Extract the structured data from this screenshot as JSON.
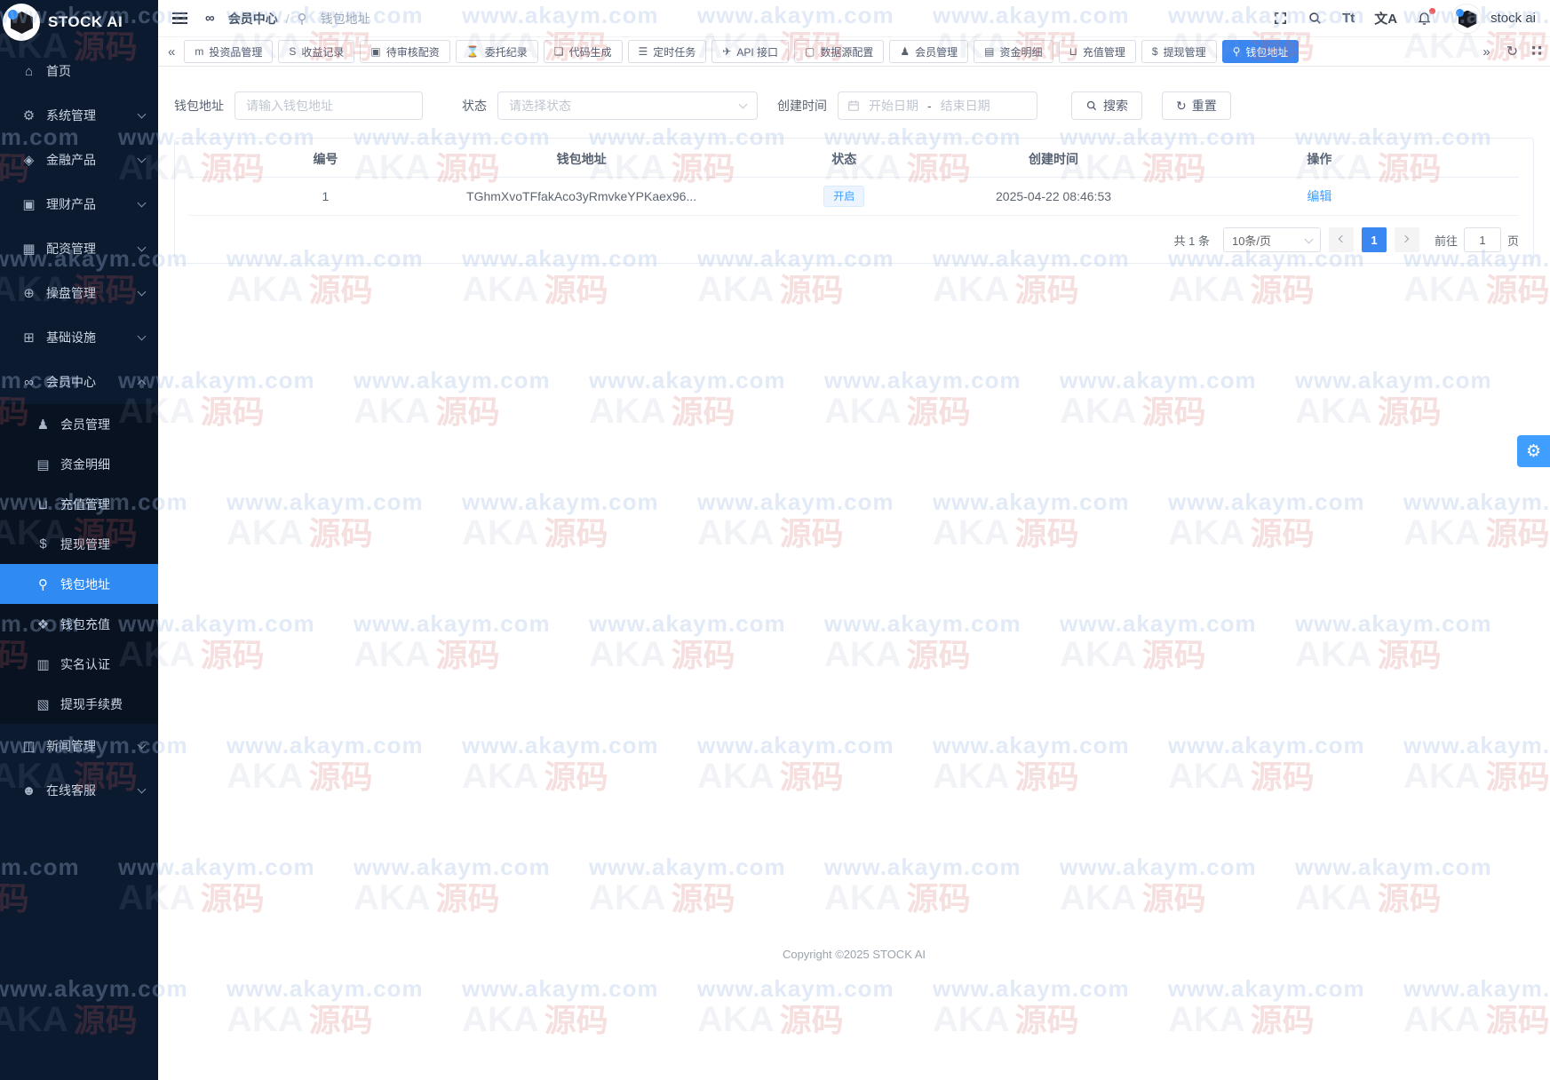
{
  "colors": {
    "accent": "#3a87f2",
    "link": "#409eff",
    "sidebar_bg": "#0c1a2f",
    "tag_blue_bg": "#ecf5ff"
  },
  "logo": {
    "title": "STOCK AI"
  },
  "header": {
    "breadcrumb": {
      "parent": "会员中心",
      "separator": "/",
      "current": "钱包地址"
    },
    "tools": {
      "font_icon_label": "Tt",
      "translate_icon_label": "文A"
    },
    "user": {
      "name": "stock ai"
    }
  },
  "sidebar": {
    "items": [
      {
        "label": "首页",
        "icon": "home-icon",
        "glyph": "⌂",
        "chevron": ""
      },
      {
        "label": "系统管理",
        "icon": "gear-icon",
        "glyph": "⚙",
        "chevron": "down"
      },
      {
        "label": "金融产品",
        "icon": "finance-product-icon",
        "glyph": "◈",
        "chevron": "down"
      },
      {
        "label": "理财产品",
        "icon": "wealth-product-icon",
        "glyph": "▣",
        "chevron": "down"
      },
      {
        "label": "配资管理",
        "icon": "funding-icon",
        "glyph": "▦",
        "chevron": "down"
      },
      {
        "label": "操盘管理",
        "icon": "trading-globe-icon",
        "glyph": "⊕",
        "chevron": "down"
      },
      {
        "label": "基础设施",
        "icon": "infrastructure-icon",
        "glyph": "⊞",
        "chevron": "down"
      }
    ],
    "member_center": {
      "label": "会员中心",
      "icon": "member-center-icon",
      "glyph": "∞",
      "children": [
        {
          "label": "会员管理",
          "icon": "user-icon",
          "glyph": "♟"
        },
        {
          "label": "资金明细",
          "icon": "book-icon",
          "glyph": "▤"
        },
        {
          "label": "充值管理",
          "icon": "cart-icon",
          "glyph": "⊔"
        },
        {
          "label": "提现管理",
          "icon": "dollar-icon",
          "glyph": "$"
        },
        {
          "label": "钱包地址",
          "icon": "person-pin-icon",
          "glyph": "⚲",
          "active": true
        },
        {
          "label": "钱包充值",
          "icon": "gem-icon",
          "glyph": "❖"
        },
        {
          "label": "实名认证",
          "icon": "id-card-icon",
          "glyph": "▥"
        },
        {
          "label": "提现手续费",
          "icon": "receipt-icon",
          "glyph": "▧"
        }
      ]
    },
    "bottom_items": [
      {
        "label": "新闻管理",
        "icon": "news-icon",
        "glyph": "◫",
        "chevron": "down"
      },
      {
        "label": "在线客服",
        "icon": "service-icon",
        "glyph": "☻",
        "chevron": "down"
      }
    ]
  },
  "tabs": {
    "items": [
      {
        "label": "投资品管理",
        "icon": "investment-icon",
        "glyph": "m"
      },
      {
        "label": "收益记录",
        "icon": "earnings-icon",
        "glyph": "S"
      },
      {
        "label": "待审核配资",
        "icon": "audit-icon",
        "glyph": "▣"
      },
      {
        "label": "委托纪录",
        "icon": "hourglass-icon",
        "glyph": "⌛"
      },
      {
        "label": "代码生成",
        "icon": "code-icon",
        "glyph": "❏"
      },
      {
        "label": "定时任务",
        "icon": "schedule-icon",
        "glyph": "☰"
      },
      {
        "label": "API 接口",
        "icon": "api-icon",
        "glyph": "✈"
      },
      {
        "label": "数据源配置",
        "icon": "datasource-icon",
        "glyph": "▢"
      },
      {
        "label": "会员管理",
        "icon": "user-icon",
        "glyph": "♟"
      },
      {
        "label": "资金明细",
        "icon": "book-icon",
        "glyph": "▤"
      },
      {
        "label": "充值管理",
        "icon": "cart-icon",
        "glyph": "⊔"
      },
      {
        "label": "提现管理",
        "icon": "dollar-icon",
        "glyph": "$"
      },
      {
        "label": "钱包地址",
        "icon": "person-pin-icon",
        "glyph": "⚲",
        "active": true
      }
    ]
  },
  "filters": {
    "wallet_label": "钱包地址",
    "wallet_placeholder": "请输入钱包地址",
    "status_label": "状态",
    "status_placeholder": "请选择状态",
    "created_label": "创建时间",
    "date_start": "开始日期",
    "date_separator": "-",
    "date_end": "结束日期",
    "search_label": "搜索",
    "reset_label": "重置"
  },
  "table": {
    "columns": [
      "编号",
      "钱包地址",
      "状态",
      "创建时间",
      "操作"
    ],
    "rows": [
      {
        "id": "1",
        "address": "TGhmXvoTFfakAco3yRmvkeYPKaex96...",
        "status": "开启",
        "created_at": "2025-04-22 08:46:53",
        "action": "编辑"
      }
    ]
  },
  "pagination": {
    "total": "共 1 条",
    "page_size": "10条/页",
    "page": "1",
    "goto_label": "前往",
    "goto_value": "1",
    "unit": "页"
  },
  "footer": {
    "copyright": "Copyright ©2025 STOCK AI"
  },
  "watermark": {
    "text": "www.akaym.com",
    "logo_text": "AKA",
    "logo_text2": "源码"
  }
}
